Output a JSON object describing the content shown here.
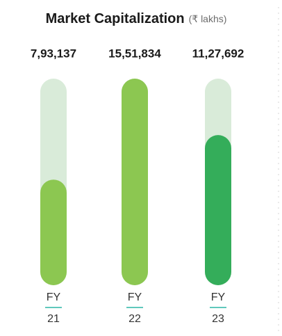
{
  "chart_data": {
    "type": "bar",
    "title": "Market Capitalization",
    "subtitle": "(₹ lakhs)",
    "categories": [
      "FY 21",
      "FY 22",
      "FY 23"
    ],
    "values": [
      793137,
      1551834,
      1127692
    ],
    "value_labels": [
      "7,93,137",
      "15,51,834",
      "11,27,692"
    ],
    "colors": [
      "#8cc751",
      "#8cc751",
      "#34ad5a"
    ],
    "track_color": "#d9ebd9",
    "ylim": [
      0,
      1551834
    ]
  }
}
